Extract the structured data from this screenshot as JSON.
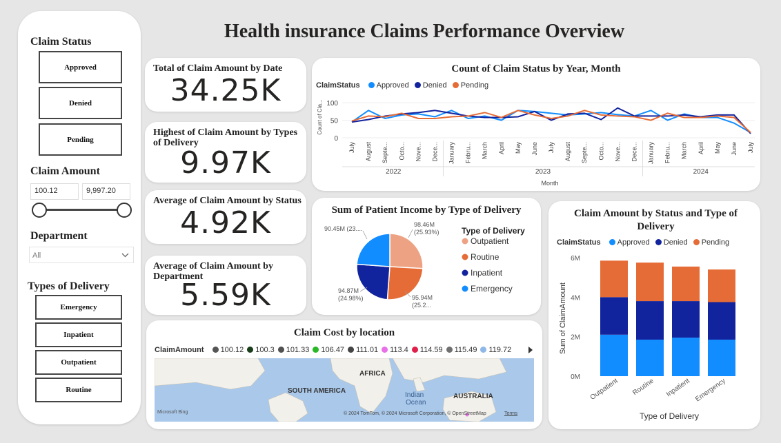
{
  "dashboard_title": "Health insurance Claims Performance Overview",
  "sidebar": {
    "claim_status_heading": "Claim Status",
    "claim_status_options": [
      "Approved",
      "Denied",
      "Pending"
    ],
    "claim_amount_heading": "Claim Amount",
    "claim_amount_min": "100.12",
    "claim_amount_max": "9,997.20",
    "department_heading": "Department",
    "department_selected": "All",
    "delivery_heading": "Types of Delivery",
    "delivery_options": [
      "Emergency",
      "Inpatient",
      "Outpatient",
      "Routine"
    ]
  },
  "kpis": [
    {
      "title": "Total of Claim Amount by Date",
      "value": "34.25K"
    },
    {
      "title": "Highest of Claim Amount by Types of Delivery",
      "value": "9.97K"
    },
    {
      "title": "Average of Claim Amount by Status",
      "value": "4.92K"
    },
    {
      "title": "Average of Claim Amount by Department",
      "value": "5.59K"
    }
  ],
  "colors": {
    "approved": "#118dff",
    "denied": "#12239e",
    "pending": "#e66c37",
    "outpatient": "#eda383",
    "routine": "#e66c37",
    "inpatient": "#12239e",
    "emergency": "#118dff"
  },
  "map": {
    "title": "Claim Cost by location",
    "legend_label": "ClaimAmount",
    "legend_items": [
      {
        "label": "100.12",
        "color": "#555555"
      },
      {
        "label": "100.3",
        "color": "#1a3d1a"
      },
      {
        "label": "101.33",
        "color": "#505050"
      },
      {
        "label": "106.47",
        "color": "#28b828"
      },
      {
        "label": "111.01",
        "color": "#444444"
      },
      {
        "label": "113.4",
        "color": "#e870e8"
      },
      {
        "label": "114.59",
        "color": "#e0204a"
      },
      {
        "label": "115.49",
        "color": "#707070"
      },
      {
        "label": "119.72",
        "color": "#8fb8e8"
      }
    ],
    "labels": {
      "africa": "AFRICA",
      "south_america": "SOUTH AMERICA",
      "indian_ocean_1": "Indian",
      "indian_ocean_2": "Ocean",
      "australia": "AUSTRALIA"
    },
    "attribution": "© 2024 TomTom, © 2024 Microsoft Corporation, © OpenStreetMap",
    "terms": "Terms",
    "logo": "Microsoft Bing"
  },
  "chart_data": [
    {
      "type": "line",
      "title": "Count of Claim Status by Year, Month",
      "legend_title": "ClaimStatus",
      "xlabel": "Month",
      "ylabel": "Count of Cla...",
      "yticks": [
        0,
        50,
        100
      ],
      "ylim": [
        0,
        110
      ],
      "x": [
        "July",
        "August",
        "Septe...",
        "Octo...",
        "Nove...",
        "Dece...",
        "January",
        "Febru...",
        "March",
        "April",
        "May",
        "June",
        "July",
        "August",
        "Septe...",
        "Octo...",
        "Nove...",
        "Dece...",
        "January",
        "Febru...",
        "March",
        "April",
        "May",
        "June",
        "July"
      ],
      "years": [
        {
          "label": "2022",
          "span": [
            0,
            5
          ]
        },
        {
          "label": "2023",
          "span": [
            6,
            17
          ]
        },
        {
          "label": "2024",
          "span": [
            18,
            24
          ]
        }
      ],
      "series": [
        {
          "name": "Approved",
          "color": "#118dff",
          "values": [
            45,
            78,
            55,
            65,
            68,
            60,
            78,
            55,
            62,
            50,
            78,
            75,
            70,
            65,
            68,
            72,
            66,
            62,
            78,
            50,
            68,
            58,
            58,
            42,
            15
          ]
        },
        {
          "name": "Denied",
          "color": "#12239e",
          "values": [
            45,
            52,
            62,
            68,
            72,
            78,
            70,
            62,
            58,
            58,
            60,
            75,
            50,
            68,
            70,
            52,
            85,
            62,
            62,
            62,
            65,
            60,
            65,
            65,
            12
          ]
        },
        {
          "name": "Pending",
          "color": "#e66c37",
          "values": [
            48,
            62,
            60,
            70,
            55,
            55,
            60,
            62,
            72,
            58,
            78,
            65,
            55,
            62,
            78,
            65,
            62,
            60,
            50,
            70,
            58,
            58,
            62,
            58,
            15
          ]
        }
      ]
    },
    {
      "type": "pie",
      "title": "Sum of Patient Income by Type of Delivery",
      "legend_title": "Type of Delivery",
      "slices": [
        {
          "name": "Outpatient",
          "value": 98.46,
          "label": "98.46M",
          "pct": "(25.93%)",
          "color": "#eda383"
        },
        {
          "name": "Routine",
          "value": 95.94,
          "label": "95.94M",
          "pct": "(25.2...",
          "color": "#e66c37"
        },
        {
          "name": "Inpatient",
          "value": 94.87,
          "label": "94.87M",
          "pct": "(24.98%)",
          "color": "#12239e"
        },
        {
          "name": "Emergency",
          "value": 90.45,
          "label": "90.45M",
          "pct": "(23....",
          "color": "#118dff"
        }
      ]
    },
    {
      "type": "bar",
      "stacked": true,
      "title": "Claim Amount by Status and Type of Delivery",
      "legend_title": "ClaimStatus",
      "xlabel": "Type of Delivery",
      "ylabel": "Sum of ClaimAmount",
      "categories": [
        "Outpatient",
        "Routine",
        "Inpatient",
        "Emergency"
      ],
      "yticks": [
        "0M",
        "2M",
        "4M",
        "6M"
      ],
      "ylim": [
        0,
        6
      ],
      "series": [
        {
          "name": "Approved",
          "color": "#118dff",
          "values": [
            2.1,
            1.85,
            1.95,
            1.85
          ]
        },
        {
          "name": "Denied",
          "color": "#12239e",
          "values": [
            1.9,
            1.95,
            1.85,
            1.9
          ]
        },
        {
          "name": "Pending",
          "color": "#e66c37",
          "values": [
            1.85,
            1.95,
            1.75,
            1.65
          ]
        }
      ]
    }
  ]
}
